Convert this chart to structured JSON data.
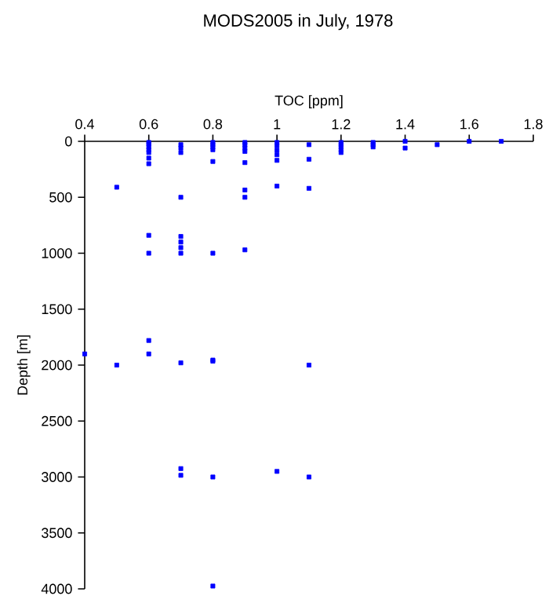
{
  "chart_data": {
    "type": "scatter",
    "title": "MODS2005 in July, 1978",
    "xlabel": "TOC [ppm]",
    "ylabel": "Depth [m]",
    "xlim": [
      0.4,
      1.8
    ],
    "xticks": [
      0.4,
      0.6,
      0.8,
      1,
      1.2,
      1.4,
      1.6,
      1.8
    ],
    "ylim": [
      4000,
      0
    ],
    "yticks": [
      0,
      500,
      1000,
      1500,
      2000,
      2500,
      3000,
      3500,
      4000
    ],
    "marker": "square",
    "grid": false,
    "series": [
      {
        "color": "#0000ff",
        "x": [
          0.4,
          0.5,
          0.5,
          0.6,
          0.6,
          0.6,
          0.6,
          0.6,
          0.6,
          0.6,
          0.6,
          0.6,
          0.6,
          0.6,
          0.7,
          0.7,
          0.7,
          0.7,
          0.7,
          0.7,
          0.7,
          0.7,
          0.7,
          0.7,
          0.7,
          0.8,
          0.8,
          0.8,
          0.8,
          0.8,
          0.8,
          0.8,
          0.8,
          0.8,
          0.8,
          0.9,
          0.9,
          0.9,
          0.9,
          0.9,
          0.9,
          0.9,
          0.9,
          1.0,
          1.0,
          1.0,
          1.0,
          1.0,
          1.0,
          1.0,
          1.1,
          1.1,
          1.1,
          1.1,
          1.1,
          1.2,
          1.2,
          1.2,
          1.2,
          1.2,
          1.3,
          1.3,
          1.3,
          1.4,
          1.4,
          1.5,
          1.6,
          1.7
        ],
        "values": [
          1900,
          410,
          2000,
          10,
          25,
          50,
          75,
          100,
          150,
          200,
          840,
          1000,
          1780,
          1900,
          30,
          60,
          100,
          500,
          850,
          900,
          950,
          1000,
          1980,
          2925,
          2985,
          10,
          30,
          50,
          75,
          180,
          1000,
          1955,
          1965,
          3000,
          3975,
          10,
          30,
          60,
          90,
          190,
          435,
          500,
          970,
          10,
          40,
          80,
          120,
          170,
          400,
          2950,
          30,
          160,
          420,
          2000,
          3000,
          10,
          30,
          50,
          75,
          100,
          10,
          30,
          50,
          0,
          60,
          30,
          0,
          0
        ]
      }
    ]
  }
}
